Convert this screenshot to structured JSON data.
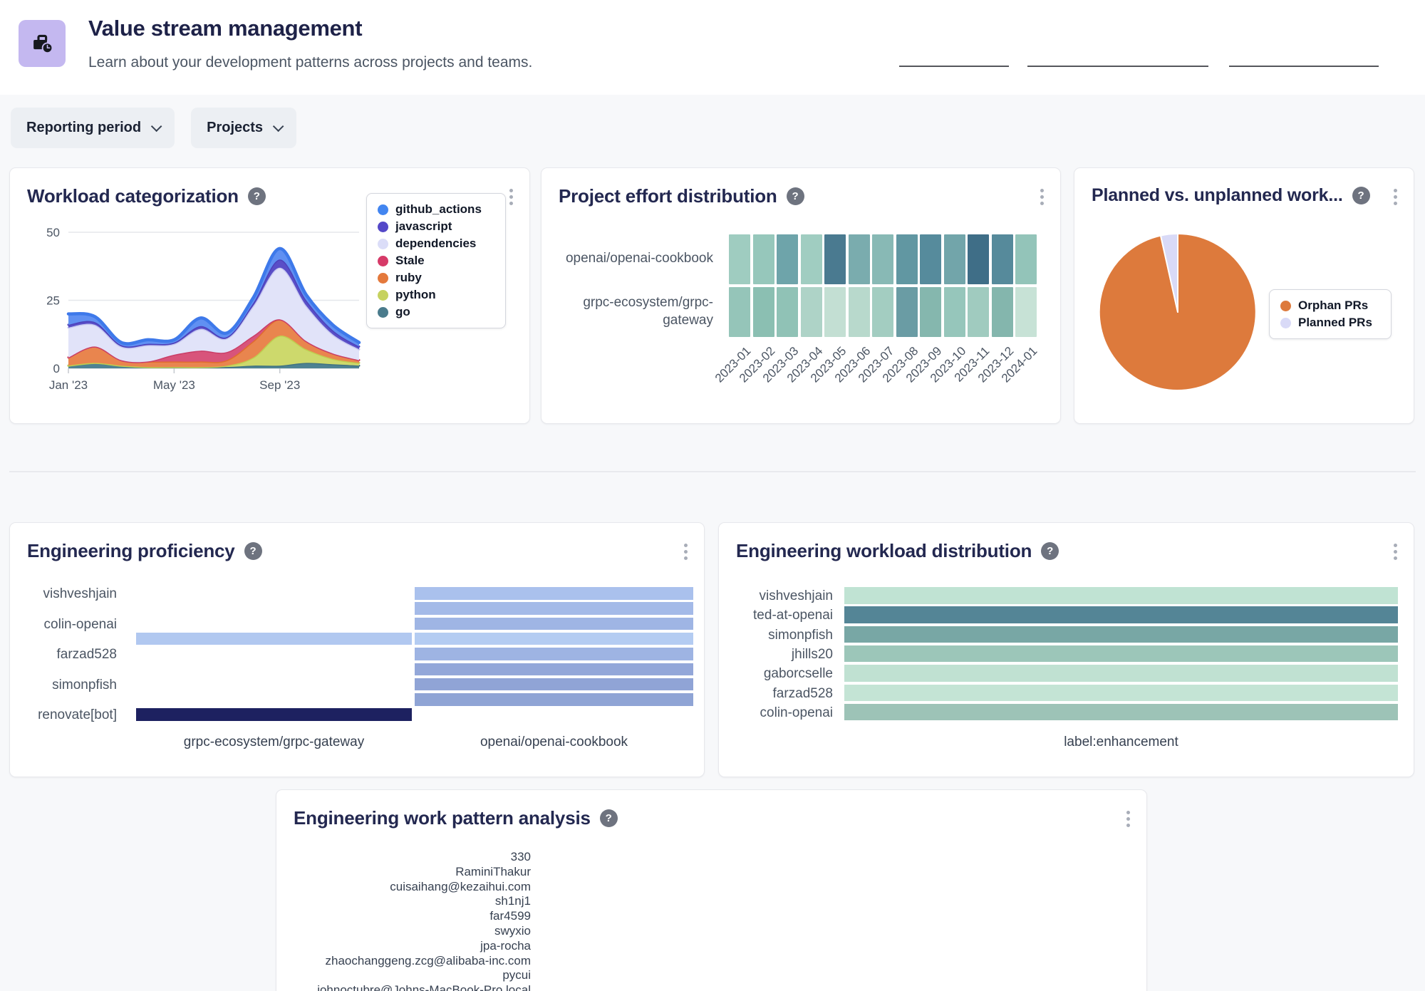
{
  "header": {
    "title": "Value stream management",
    "subtitle": "Learn about your development patterns across projects and teams.",
    "icon": "briefcase-clock-icon"
  },
  "icons": {
    "help": "?"
  },
  "filters": {
    "reporting_period": "Reporting period",
    "projects": "Projects"
  },
  "cards": {
    "workload_categorization": {
      "title": "Workload categorization",
      "chart_data": {
        "type": "area",
        "stacked": true,
        "x": [
          "2023-01",
          "2023-02",
          "2023-03",
          "2023-04",
          "2023-05",
          "2023-06",
          "2023-07",
          "2023-08",
          "2023-09",
          "2023-10",
          "2023-11",
          "2023-12"
        ],
        "x_tick_labels": [
          "Jan '23",
          "May '23",
          "Sep '23"
        ],
        "x_tick_indexes": [
          0,
          4,
          8
        ],
        "y_ticks": [
          0,
          25,
          50
        ],
        "ylim": [
          0,
          50
        ],
        "grid": true,
        "legend_position": "right",
        "series": [
          {
            "name": "go",
            "fill": "#4e8292",
            "stroke": "#417382",
            "values": [
              1,
              2,
              1,
              0.5,
              0.5,
              0.5,
              0.5,
              1,
              1,
              2,
              1.5,
              1
            ]
          },
          {
            "name": "python",
            "fill": "#cdd96c",
            "stroke": "#c0cd4f",
            "values": [
              0,
              0,
              0,
              0,
              0,
              0,
              0.5,
              3,
              11,
              5,
              2,
              1
            ]
          },
          {
            "name": "ruby",
            "fill": "#e9854e",
            "stroke": "#e06d2e",
            "values": [
              3,
              6,
              2,
              2,
              2,
              2,
              2,
              6,
              6,
              3,
              2,
              1
            ]
          },
          {
            "name": "Stale",
            "fill": "#d8547b",
            "stroke": "#ca3e68",
            "values": [
              0,
              0,
              0,
              0,
              2.5,
              4,
              3,
              2,
              0,
              0,
              0,
              0
            ]
          },
          {
            "name": "dependencies",
            "fill": "#e1e3f9",
            "stroke": "#c7c9f0",
            "values": [
              11,
              8,
              5,
              6,
              4,
              8,
              5,
              11,
              19,
              13,
              7,
              4
            ]
          },
          {
            "name": "javascript",
            "fill": "#5a4ec7",
            "stroke": "#4d41bb",
            "values": [
              1,
              1,
              0.5,
              0.5,
              0.5,
              1,
              0.5,
              1,
              3,
              2,
              1.5,
              1
            ]
          },
          {
            "name": "github_actions",
            "fill": "#6090f2",
            "stroke": "#3e79ea",
            "values": [
              4,
              2,
              1,
              1.5,
              1,
              3,
              1.5,
              2,
              4,
              2,
              2,
              1.5
            ]
          }
        ],
        "legend": [
          {
            "label": "github_actions",
            "color": "#4285f0"
          },
          {
            "label": "javascript",
            "color": "#5448c8"
          },
          {
            "label": "dependencies",
            "color": "#dbddf8"
          },
          {
            "label": "Stale",
            "color": "#d63a68"
          },
          {
            "label": "ruby",
            "color": "#e4793c"
          },
          {
            "label": "python",
            "color": "#c6d25f"
          },
          {
            "label": "go",
            "color": "#4a7b8c"
          }
        ]
      }
    },
    "project_effort": {
      "title": "Project effort distribution",
      "chart_data": {
        "type": "heatmap",
        "rows": [
          "openai/openai-cookbook",
          "grpc-ecosystem/grpc-gateway"
        ],
        "columns": [
          "2023-01",
          "2023-02",
          "2023-03",
          "2023-04",
          "2023-05",
          "2023-06",
          "2023-07",
          "2023-08",
          "2023-09",
          "2023-10",
          "2023-11",
          "2023-12",
          "2024-01"
        ],
        "cell_colors": [
          [
            "#9fccc0",
            "#96c7bb",
            "#6ea4aa",
            "#a0cdc1",
            "#4a7a90",
            "#7aacae",
            "#88b9b5",
            "#6197a2",
            "#568b9c",
            "#72a5aa",
            "#3f6e87",
            "#568a9b",
            "#93c4b9"
          ],
          [
            "#95c5b9",
            "#8bbfb2",
            "#90c2b6",
            "#aed3c7",
            "#c3dfd3",
            "#b8d9cc",
            "#a3cdc1",
            "#6a9ca4",
            "#85b7ae",
            "#96c6bb",
            "#a0cbbf",
            "#84b6ad",
            "#c7e2d6"
          ]
        ]
      }
    },
    "planned_unplanned": {
      "title": "Planned vs. unplanned work...",
      "chart_data": {
        "type": "pie",
        "slices": [
          {
            "label": "Orphan PRs",
            "value": 96.5,
            "color": "#dd7a3c"
          },
          {
            "label": "Planned PRs",
            "value": 3.5,
            "color": "#d9daf7"
          }
        ],
        "legend_position": "right"
      }
    },
    "engineering_proficiency": {
      "title": "Engineering proficiency",
      "chart_data": {
        "type": "bar",
        "orientation": "horizontal",
        "panels": [
          "grpc-ecosystem/grpc-gateway",
          "openai/openai-cookbook"
        ],
        "rows": [
          {
            "label": "vishveshjain",
            "left": 0,
            "left_color": "",
            "right": 1,
            "right_color": "#aac1ed"
          },
          {
            "label": "",
            "left": 0,
            "left_color": "",
            "right": 1,
            "right_color": "#a4bae8"
          },
          {
            "label": "colin-openai",
            "left": 0,
            "left_color": "",
            "right": 1,
            "right_color": "#9fb5e4"
          },
          {
            "label": "",
            "left": 1,
            "left_color": "#b1c8f0",
            "right": 1,
            "right_color": "#b4ccf2"
          },
          {
            "label": "farzad528",
            "left": 0,
            "left_color": "",
            "right": 1,
            "right_color": "#9eb4e3"
          },
          {
            "label": "",
            "left": 0,
            "left_color": "",
            "right": 1,
            "right_color": "#93a7d9"
          },
          {
            "label": "simonpfish",
            "left": 0,
            "left_color": "",
            "right": 1,
            "right_color": "#90a4d6"
          },
          {
            "label": "",
            "left": 0,
            "left_color": "",
            "right": 1,
            "right_color": "#8fa4d5"
          },
          {
            "label": "renovate[bot]",
            "left": 1,
            "left_color": "#1d2160",
            "right": 0,
            "right_color": ""
          }
        ]
      }
    },
    "workload_distribution": {
      "title": "Engineering workload distribution",
      "chart_data": {
        "type": "bar",
        "orientation": "horizontal",
        "categories": [
          "vishveshjain",
          "ted-at-openai",
          "simonpfish",
          "jhills20",
          "gaborcselle",
          "farzad528",
          "colin-openai"
        ],
        "values": [
          1,
          1,
          1,
          1,
          1,
          1,
          1
        ],
        "colors": [
          "#c0e3d3",
          "#548596",
          "#78a7a5",
          "#9cc6b9",
          "#c0e1d2",
          "#c4e4d5",
          "#9dc3b7"
        ],
        "xlabel": "label:enhancement"
      }
    },
    "work_pattern": {
      "title": "Engineering work pattern analysis",
      "axis_labels": [
        "330",
        "RaminiThakur",
        "cuisaihang@kezaihui.com",
        "sh1nj1",
        "far4599",
        "swyxio",
        "jpa-rocha",
        "zhaochanggeng.zcg@alibaba-inc.com",
        "pycui",
        "johnoctubre@Johns-MacBook-Pro.local"
      ]
    }
  }
}
